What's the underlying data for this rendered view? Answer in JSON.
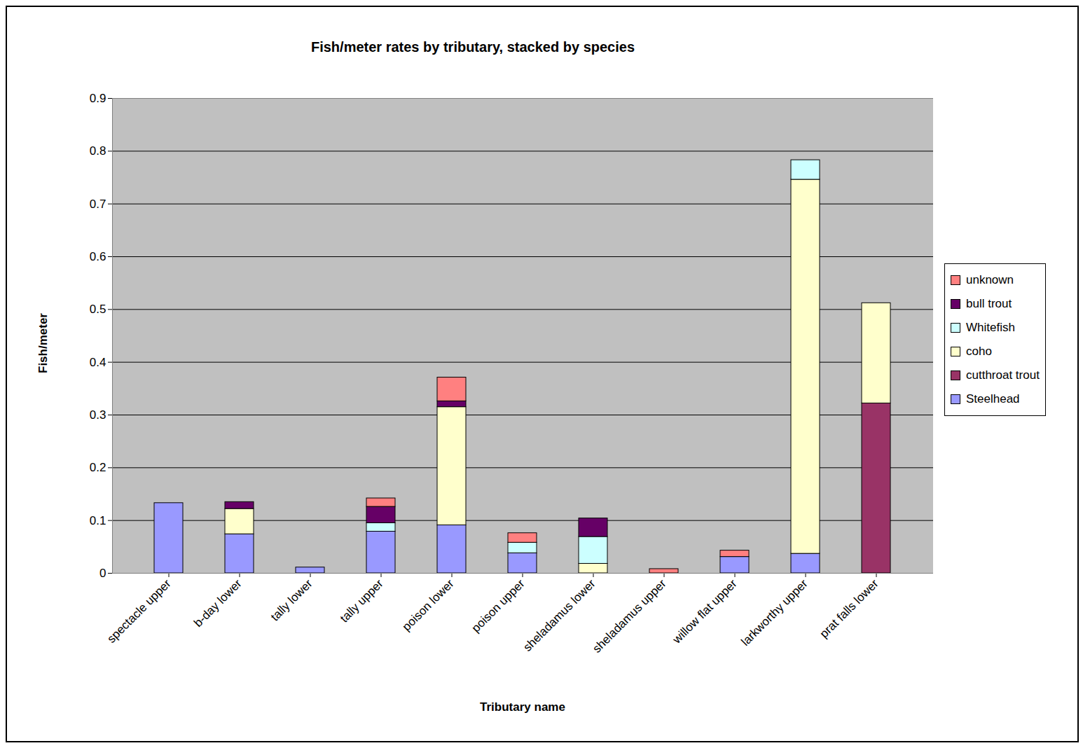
{
  "chart_data": {
    "type": "bar",
    "title": "Fish/meter rates by tributary, stacked by species",
    "xlabel": "Tributary name",
    "ylabel": "Fish/meter",
    "stacked": true,
    "grid": true,
    "legend": "right",
    "categories": [
      "spectacle upper",
      "b-day lower",
      "tally lower",
      "tally upper",
      "poison lower",
      "poison upper",
      "sheladamus lower",
      "sheladamus upper",
      "willow flat upper",
      "larkworthy upper",
      "prat falls lower"
    ],
    "series": [
      {
        "name": "Steelhead",
        "color": "#9999ff",
        "values": [
          0.133,
          0.074,
          0.011,
          0.079,
          0.091,
          0.038,
          0,
          0,
          0.031,
          0.037,
          0
        ]
      },
      {
        "name": "cutthroat trout",
        "color": "#993366",
        "values": [
          0,
          0,
          0,
          0,
          0,
          0,
          0,
          0,
          0,
          0,
          0.322
        ]
      },
      {
        "name": "coho",
        "color": "#ffffcc",
        "values": [
          0,
          0.048,
          0,
          0,
          0.224,
          0,
          0.018,
          0,
          0,
          0.709,
          0.19
        ]
      },
      {
        "name": "Whitefish",
        "color": "#ccffff",
        "values": [
          0,
          0,
          0,
          0.016,
          0,
          0.02,
          0.051,
          0,
          0,
          0.037,
          0
        ]
      },
      {
        "name": "bull trout",
        "color": "#660066",
        "values": [
          0,
          0.013,
          0,
          0.031,
          0.011,
          0,
          0.035,
          0,
          0,
          0,
          0
        ]
      },
      {
        "name": "unknown",
        "color": "#ff8080",
        "values": [
          0,
          0,
          0,
          0.016,
          0.045,
          0.018,
          0,
          0.008,
          0.012,
          0,
          0
        ]
      }
    ],
    "ylim": [
      0,
      0.9
    ],
    "yticks": [
      0,
      0.1,
      0.2,
      0.3,
      0.4,
      0.5,
      0.6,
      0.7,
      0.8,
      0.9
    ]
  }
}
